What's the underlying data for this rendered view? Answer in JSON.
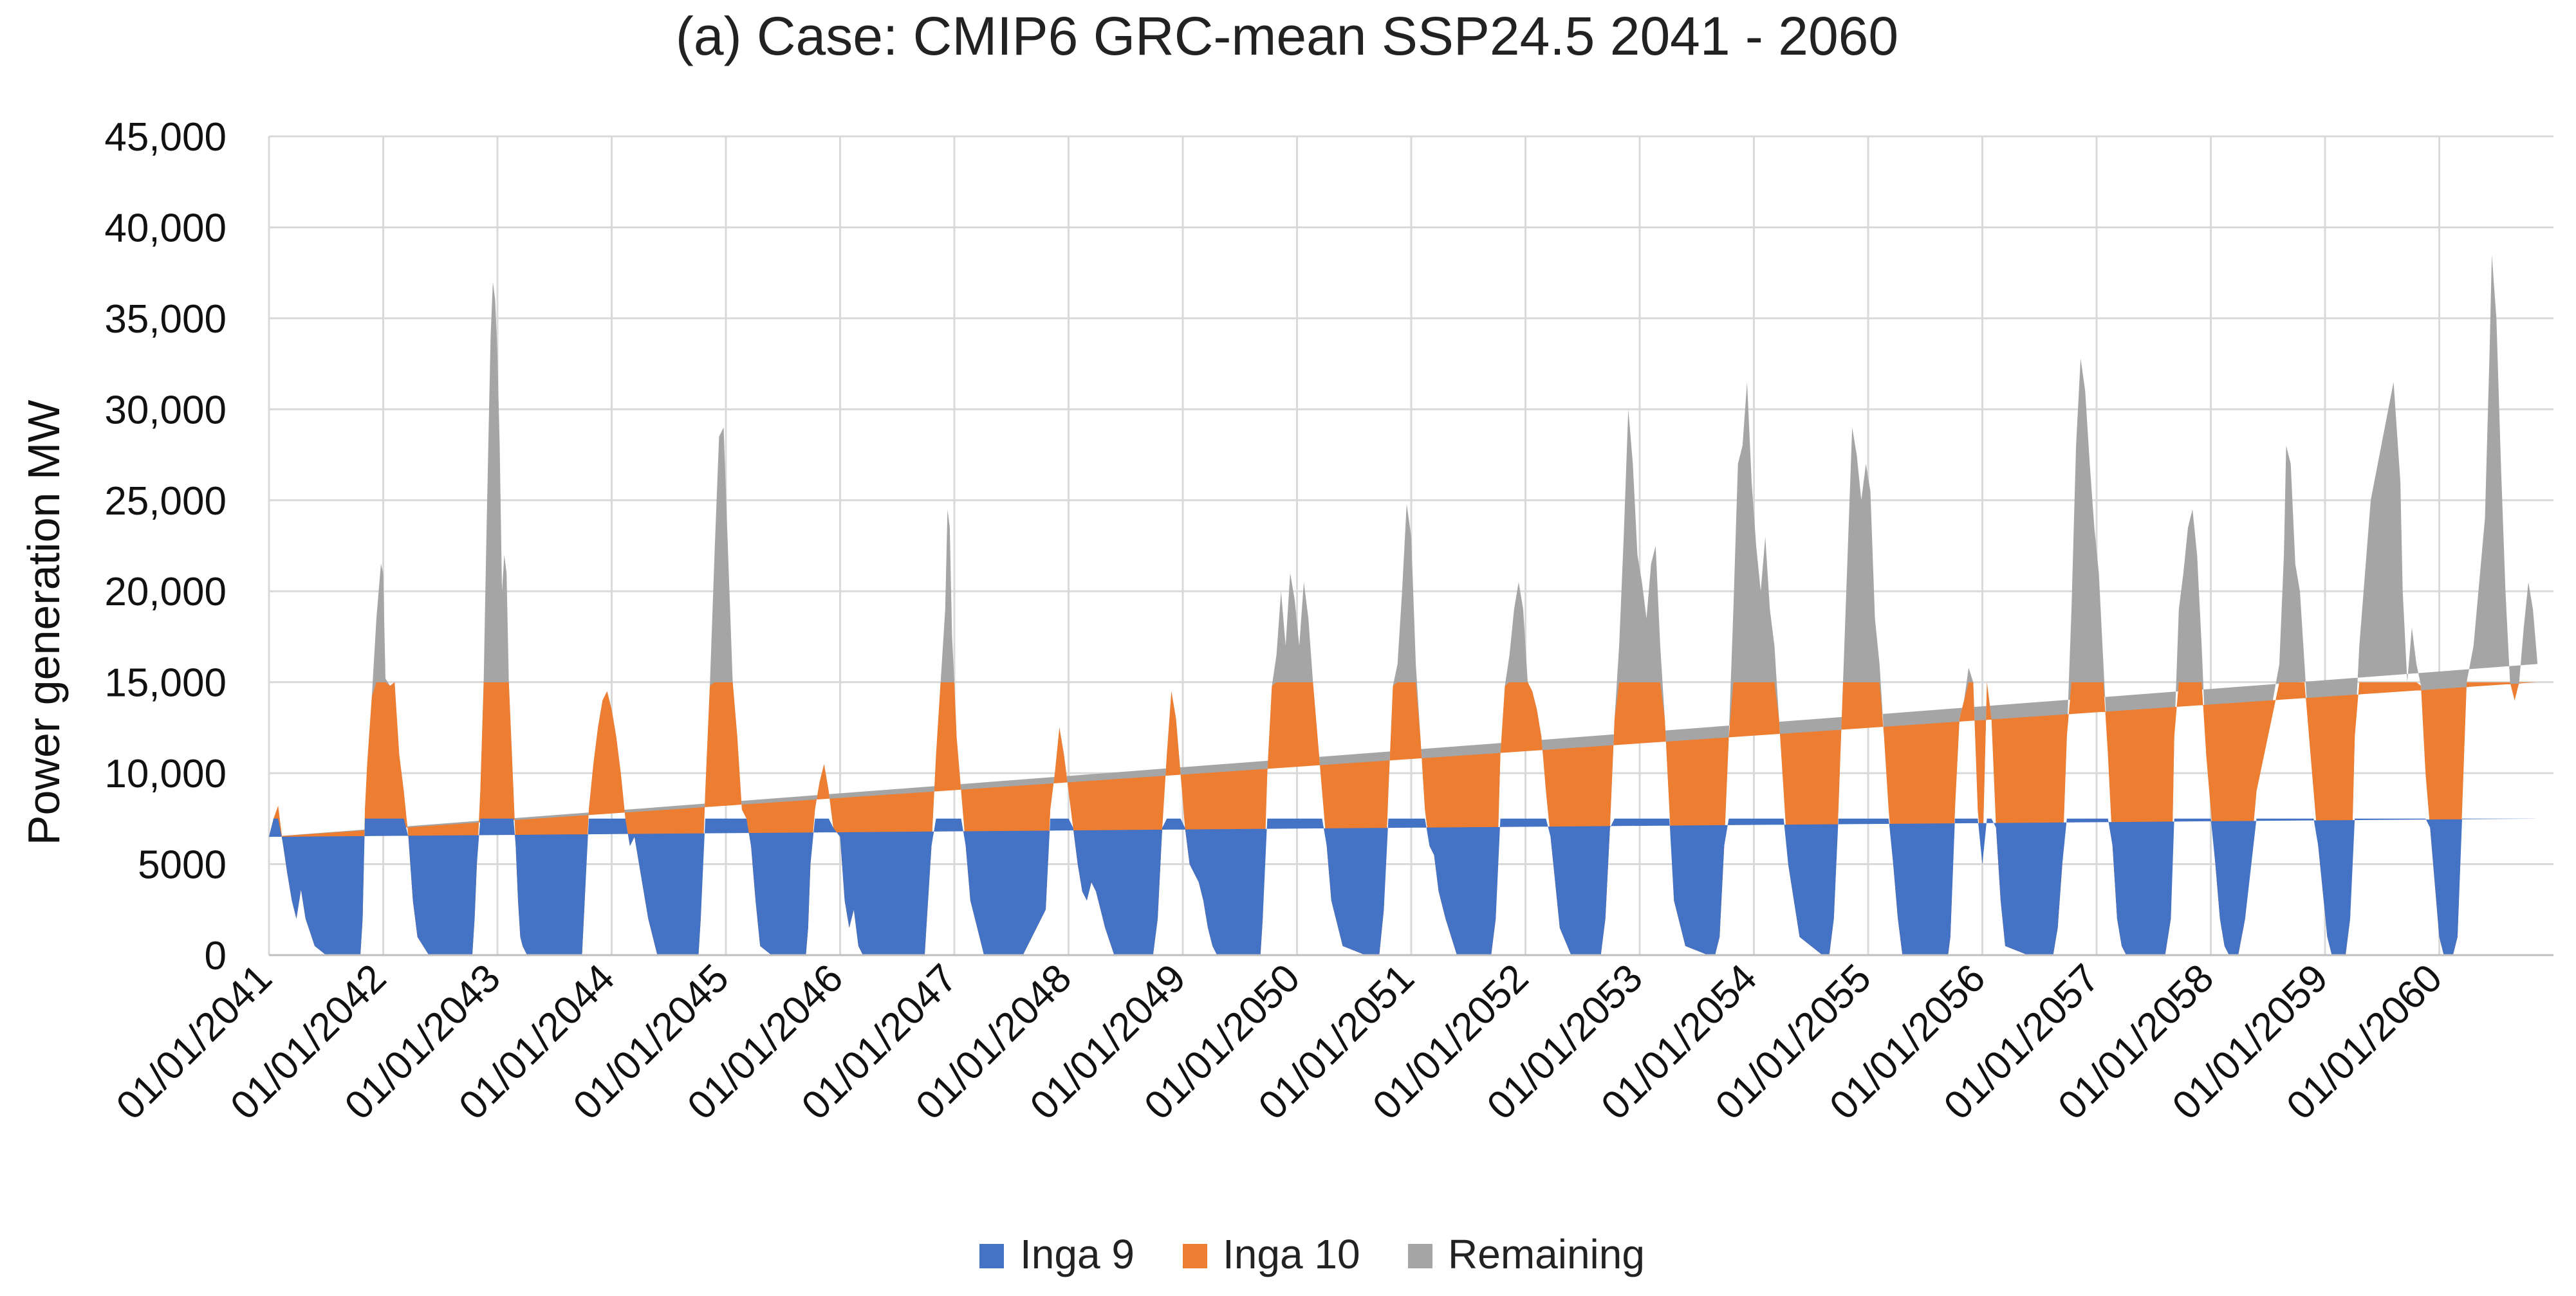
{
  "chart_data": {
    "type": "area",
    "stacked": true,
    "title": "(a)  Case: CMIP6 GRC-mean  SSP24.5  2041 - 2060",
    "ylabel": "Power generation MW",
    "xlabel": "",
    "ylim": [
      0,
      45000
    ],
    "yticks": [
      0,
      5000,
      10000,
      15000,
      20000,
      25000,
      30000,
      35000,
      40000,
      45000
    ],
    "ytick_labels": [
      "0",
      "5000",
      "10,000",
      "15,000",
      "20,000",
      "25,000",
      "30,000",
      "35,000",
      "40,000",
      "45,000"
    ],
    "xlim": [
      2041.0,
      2061.0
    ],
    "xticks": [
      2041,
      2042,
      2043,
      2044,
      2045,
      2046,
      2047,
      2048,
      2049,
      2050,
      2051,
      2052,
      2053,
      2054,
      2055,
      2056,
      2057,
      2058,
      2059,
      2060
    ],
    "xtick_labels": [
      "01/01/2041",
      "01/01/2042",
      "01/01/2043",
      "01/01/2044",
      "01/01/2045",
      "01/01/2046",
      "01/01/2047",
      "01/01/2048",
      "01/01/2049",
      "01/01/2050",
      "01/01/2051",
      "01/01/2052",
      "01/01/2053",
      "01/01/2054",
      "01/01/2055",
      "01/01/2056",
      "01/01/2057",
      "01/01/2058",
      "01/01/2059",
      "01/01/2060"
    ],
    "grid": "vertical",
    "legend_position": "bottom-center",
    "series": [
      {
        "name": "Inga 9",
        "color": "#4472C4",
        "capacity": 7500
      },
      {
        "name": "Inga 10",
        "color": "#ED7D31",
        "capacity": 7500
      },
      {
        "name": "Remaining",
        "color": "#A5A5A5",
        "capacity": null
      }
    ],
    "total_generation_x": [
      2041.0,
      2041.04,
      2041.08,
      2041.12,
      2041.16,
      2041.2,
      2041.24,
      2041.28,
      2041.32,
      2041.4,
      2041.5,
      2041.8,
      2041.82,
      2041.84,
      2041.86,
      2041.9,
      2041.94,
      2041.98,
      2042.0,
      2042.02,
      2042.06,
      2042.1,
      2042.14,
      2042.18,
      2042.22,
      2042.26,
      2042.3,
      2042.4,
      2042.5,
      2042.78,
      2042.8,
      2042.82,
      2042.85,
      2042.88,
      2042.9,
      2042.92,
      2042.94,
      2042.96,
      2042.98,
      2043.0,
      2043.02,
      2043.04,
      2043.06,
      2043.08,
      2043.1,
      2043.12,
      2043.14,
      2043.16,
      2043.18,
      2043.2,
      2043.22,
      2043.26,
      2043.3,
      2043.4,
      2043.6,
      2043.74,
      2043.76,
      2043.8,
      2043.84,
      2043.88,
      2043.92,
      2043.96,
      2044.0,
      2044.04,
      2044.08,
      2044.12,
      2044.16,
      2044.2,
      2044.24,
      2044.28,
      2044.32,
      2044.4,
      2044.6,
      2044.76,
      2044.78,
      2044.82,
      2044.86,
      2044.9,
      2044.94,
      2044.98,
      2045.02,
      2045.06,
      2045.1,
      2045.14,
      2045.18,
      2045.22,
      2045.26,
      2045.3,
      2045.4,
      2045.6,
      2045.7,
      2045.72,
      2045.74,
      2045.78,
      2045.82,
      2045.86,
      2045.9,
      2045.94,
      2046.0,
      2046.04,
      2046.08,
      2046.12,
      2046.16,
      2046.2,
      2046.4,
      2046.6,
      2046.74,
      2046.76,
      2046.8,
      2046.84,
      2046.88,
      2046.92,
      2046.94,
      2046.96,
      2046.98,
      2047.0,
      2047.02,
      2047.06,
      2047.1,
      2047.14,
      2047.18,
      2047.22,
      2047.26,
      2047.3,
      2047.4,
      2047.6,
      2047.8,
      2047.84,
      2047.88,
      2047.92,
      2047.96,
      2048.0,
      2048.04,
      2048.08,
      2048.12,
      2048.16,
      2048.2,
      2048.24,
      2048.28,
      2048.32,
      2048.4,
      2048.6,
      2048.74,
      2048.78,
      2048.82,
      2048.86,
      2048.9,
      2048.94,
      2048.98,
      2049.02,
      2049.06,
      2049.1,
      2049.14,
      2049.18,
      2049.22,
      2049.26,
      2049.3,
      2049.4,
      2049.6,
      2049.68,
      2049.7,
      2049.74,
      2049.78,
      2049.82,
      2049.86,
      2049.9,
      2049.94,
      2049.98,
      2050.02,
      2050.06,
      2050.1,
      2050.14,
      2050.18,
      2050.22,
      2050.26,
      2050.3,
      2050.4,
      2050.6,
      2050.7,
      2050.72,
      2050.76,
      2050.8,
      2050.84,
      2050.88,
      2050.92,
      2050.96,
      2051.0,
      2051.04,
      2051.08,
      2051.12,
      2051.16,
      2051.2,
      2051.24,
      2051.3,
      2051.4,
      2051.6,
      2051.68,
      2051.7,
      2051.74,
      2051.78,
      2051.82,
      2051.86,
      2051.9,
      2051.94,
      2051.98,
      2052.02,
      2052.06,
      2052.1,
      2052.14,
      2052.18,
      2052.22,
      2052.26,
      2052.3,
      2052.4,
      2052.6,
      2052.62,
      2052.66,
      2052.7,
      2052.74,
      2052.78,
      2052.82,
      2052.86,
      2052.9,
      2052.94,
      2052.98,
      2053.02,
      2053.06,
      2053.1,
      2053.14,
      2053.18,
      2053.22,
      2053.26,
      2053.3,
      2053.4,
      2053.6,
      2053.62,
      2053.66,
      2053.7,
      2053.74,
      2053.78,
      2053.82,
      2053.86,
      2053.9,
      2053.94,
      2053.98,
      2054.02,
      2054.06,
      2054.1,
      2054.14,
      2054.18,
      2054.22,
      2054.26,
      2054.3,
      2054.4,
      2054.6,
      2054.62,
      2054.66,
      2054.7,
      2054.74,
      2054.78,
      2054.82,
      2054.86,
      2054.9,
      2054.94,
      2054.98,
      2055.02,
      2055.06,
      2055.1,
      2055.14,
      2055.18,
      2055.22,
      2055.26,
      2055.3,
      2055.4,
      2055.6,
      2055.7,
      2055.72,
      2055.76,
      2055.8,
      2055.84,
      2055.88,
      2055.92,
      2055.96,
      2056.0,
      2056.04,
      2056.08,
      2056.12,
      2056.16,
      2056.2,
      2056.4,
      2056.6,
      2056.62,
      2056.66,
      2056.7,
      2056.74,
      2056.78,
      2056.82,
      2056.86,
      2056.9,
      2056.94,
      2056.98,
      2057.02,
      2057.06,
      2057.1,
      2057.14,
      2057.18,
      2057.22,
      2057.26,
      2057.3,
      2057.4,
      2057.6,
      2057.65,
      2057.68,
      2057.72,
      2057.76,
      2057.8,
      2057.84,
      2057.88,
      2057.92,
      2057.96,
      2058.0,
      2058.04,
      2058.08,
      2058.12,
      2058.16,
      2058.2,
      2058.24,
      2058.3,
      2058.4,
      2058.6,
      2058.64,
      2058.66,
      2058.7,
      2058.74,
      2058.78,
      2058.82,
      2058.86,
      2058.9,
      2058.94,
      2058.98,
      2059.02,
      2059.06,
      2059.1,
      2059.14,
      2059.18,
      2059.22,
      2059.26,
      2059.3,
      2059.4,
      2059.6,
      2059.66,
      2059.68,
      2059.72,
      2059.76,
      2059.8,
      2059.84,
      2059.88,
      2059.92,
      2059.96,
      2060.0,
      2060.04,
      2060.08,
      2060.12,
      2060.16,
      2060.2,
      2060.24,
      2060.3,
      2060.4,
      2060.44,
      2060.46,
      2060.5,
      2060.54,
      2060.58,
      2060.62,
      2060.66,
      2060.7,
      2060.74,
      2060.78,
      2060.82,
      2060.86,
      2060.9,
      2060.94,
      2060.98,
      2061.0
    ],
    "total_generation_mw": [
      6500,
      7500,
      8200,
      6200,
      4500,
      3000,
      2000,
      3600,
      2000,
      500,
      0,
      0,
      2000,
      8000,
      10500,
      14200,
      18500,
      21500,
      21000,
      15200,
      14800,
      15000,
      11000,
      9000,
      6500,
      3000,
      1000,
      0,
      0,
      0,
      2000,
      5000,
      9000,
      15200,
      22000,
      28000,
      34000,
      37000,
      36000,
      33000,
      28000,
      20000,
      22000,
      21000,
      15000,
      12000,
      9000,
      6000,
      3000,
      1000,
      500,
      0,
      0,
      0,
      0,
      0,
      2500,
      8000,
      10500,
      12500,
      14000,
      14500,
      13500,
      12000,
      10000,
      7500,
      6000,
      6500,
      5000,
      3500,
      2000,
      0,
      0,
      0,
      2000,
      9000,
      14800,
      22000,
      28500,
      29000,
      22000,
      15000,
      12000,
      8000,
      7500,
      6000,
      3000,
      500,
      0,
      0,
      0,
      1500,
      5000,
      8000,
      9500,
      10500,
      9000,
      7000,
      6500,
      3000,
      1500,
      2500,
      500,
      0,
      0,
      0,
      0,
      2000,
      6000,
      11000,
      15000,
      19000,
      24500,
      23500,
      17500,
      15000,
      12000,
      9000,
      6000,
      3000,
      2000,
      1000,
      0,
      0,
      0,
      0,
      2500,
      8000,
      10000,
      12500,
      11000,
      9000,
      7000,
      5000,
      3500,
      3000,
      4000,
      3500,
      2500,
      1500,
      0,
      0,
      0,
      2000,
      7000,
      11000,
      14500,
      13000,
      10000,
      7000,
      5000,
      4500,
      4000,
      3000,
      1500,
      500,
      0,
      0,
      0,
      0,
      2000,
      10000,
      14800,
      16500,
      20000,
      17000,
      21000,
      19500,
      17000,
      20500,
      18500,
      15000,
      12000,
      9000,
      6000,
      3000,
      500,
      0,
      0,
      0,
      2500,
      9000,
      14800,
      16000,
      20000,
      24800,
      23000,
      16000,
      12000,
      8000,
      6000,
      5500,
      3500,
      2000,
      0,
      0,
      0,
      0,
      2000,
      11000,
      14800,
      16500,
      19000,
      20500,
      19000,
      15000,
      14500,
      13500,
      12000,
      9000,
      6500,
      4000,
      1500,
      0,
      0,
      0,
      0,
      2000,
      7000,
      13000,
      17000,
      23000,
      30000,
      27000,
      22000,
      20500,
      18500,
      21500,
      22500,
      17000,
      13000,
      8000,
      3000,
      500,
      0,
      0,
      0,
      1000,
      6000,
      12000,
      19000,
      27000,
      28000,
      31500,
      26000,
      22500,
      20000,
      23000,
      19000,
      17000,
      13000,
      9000,
      5000,
      1000,
      0,
      0,
      0,
      2000,
      8000,
      15000,
      22000,
      29000,
      27500,
      25000,
      27000,
      25500,
      18500,
      16000,
      12000,
      8000,
      5000,
      2000,
      0,
      0,
      0,
      0,
      1000,
      8000,
      13000,
      14000,
      15800,
      15000,
      8000,
      5000,
      15000,
      13000,
      7000,
      3000,
      500,
      0,
      0,
      0,
      1500,
      5000,
      12000,
      19000,
      28000,
      32800,
      31000,
      27000,
      23500,
      21000,
      16000,
      11000,
      6000,
      2000,
      500,
      0,
      0,
      0,
      0,
      2000,
      12000,
      19000,
      21000,
      23500,
      24500,
      22000,
      17000,
      11000,
      8000,
      5000,
      2000,
      500,
      0,
      0,
      0,
      2000,
      9000,
      16000,
      22000,
      28000,
      27000,
      21500,
      20000,
      16000,
      12000,
      9000,
      6000,
      3500,
      1000,
      0,
      0,
      0,
      0,
      2000,
      12000,
      17000,
      25000,
      31500,
      26000,
      20000,
      15000,
      18000,
      16000,
      14800,
      10000,
      7000,
      4000,
      1000,
      0,
      0,
      0,
      1000,
      8000,
      15000,
      17000,
      24000,
      33000,
      38500,
      35000,
      27000,
      20000,
      15000,
      14000,
      15000,
      18000,
      20500,
      19000,
      16000
    ]
  },
  "legend": {
    "items": [
      {
        "label": "Inga 9",
        "color": "#4472C4"
      },
      {
        "label": "Inga 10",
        "color": "#ED7D31"
      },
      {
        "label": "Remaining",
        "color": "#A5A5A5"
      }
    ]
  }
}
